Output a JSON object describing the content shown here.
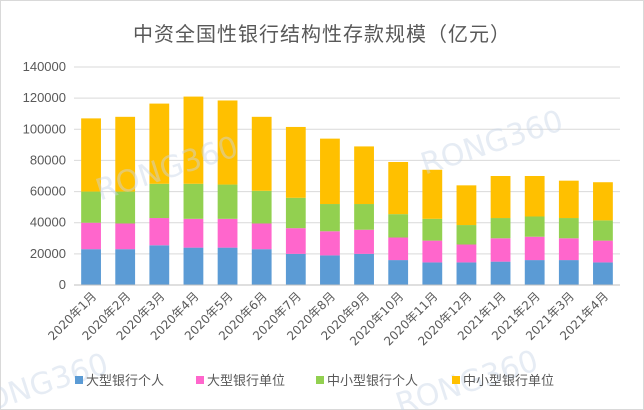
{
  "chart_data": {
    "type": "bar",
    "stacked": true,
    "title": "中资全国性银行结构性存款规模（亿元）",
    "categories": [
      "2020年1月",
      "2020年2月",
      "2020年3月",
      "2020年4月",
      "2020年5月",
      "2020年6月",
      "2020年7月",
      "2020年8月",
      "2020年9月",
      "2020年10月",
      "2020年11月",
      "2020年12月",
      "2021年1月",
      "2021年2月",
      "2021年3月",
      "2021年4月"
    ],
    "series": [
      {
        "name": "大型银行个人",
        "color": "#5b9bd5",
        "values": [
          23000,
          23000,
          25500,
          24000,
          24000,
          23000,
          20000,
          19000,
          20000,
          16000,
          14500,
          14500,
          15000,
          16000,
          16000,
          14500
        ]
      },
      {
        "name": "大型银行单位",
        "color": "#ff66cc",
        "values": [
          17000,
          16500,
          17500,
          18500,
          18500,
          16500,
          16500,
          15500,
          15500,
          14500,
          14000,
          11500,
          15000,
          15000,
          14000,
          14000
        ]
      },
      {
        "name": "中小型银行个人",
        "color": "#92d050",
        "values": [
          20000,
          20500,
          22000,
          22500,
          22000,
          21000,
          19500,
          17500,
          16500,
          15000,
          14000,
          12500,
          13000,
          13000,
          13000,
          13000
        ]
      },
      {
        "name": "中小型银行单位",
        "color": "#ffc000",
        "values": [
          47000,
          48000,
          51500,
          56000,
          54000,
          47500,
          45500,
          42000,
          37000,
          33500,
          31500,
          25500,
          27000,
          26000,
          24000,
          24500
        ]
      }
    ],
    "ylim": [
      0,
      140000
    ],
    "yticks": [
      "0",
      "20000",
      "40000",
      "60000",
      "80000",
      "100000",
      "120000",
      "140000"
    ],
    "grid": true,
    "legend_position": "bottom",
    "watermark": "RONG360"
  }
}
